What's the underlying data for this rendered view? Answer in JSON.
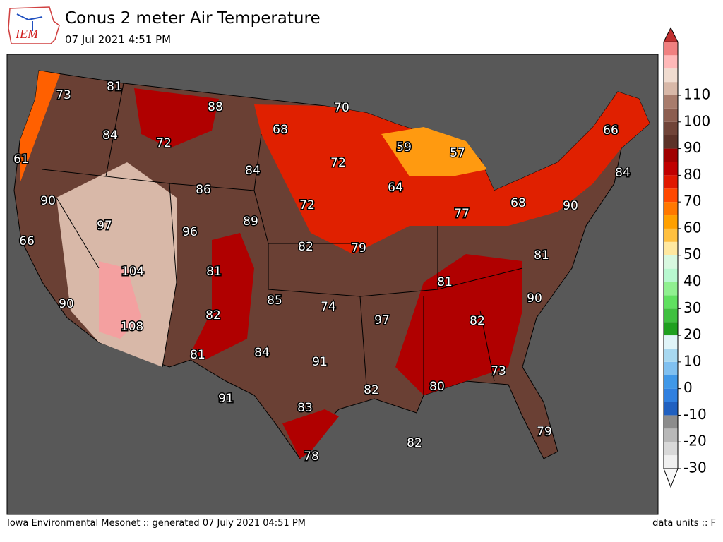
{
  "logo": "IEM",
  "header": {
    "title": "Conus 2 meter Air Temperature",
    "subtitle": "07 Jul 2021 4:51 PM"
  },
  "footer": {
    "left": "Iowa Environmental Mesonet :: generated 07 July 2021 04:51 PM",
    "right": "data units :: F"
  },
  "colorbar": {
    "ticks": [
      -30,
      -20,
      -10,
      0,
      10,
      20,
      30,
      40,
      50,
      60,
      70,
      80,
      90,
      100,
      110
    ],
    "colors": [
      "#f0f0f0",
      "#d8d8d8",
      "#b8b8b8",
      "#8c8c8c",
      "#2060c0",
      "#3080e0",
      "#4098e8",
      "#80c0f0",
      "#a8d8f0",
      "#e0f4f8",
      "#20a020",
      "#40c040",
      "#60e060",
      "#90f090",
      "#b8f8d0",
      "#d8f8e0",
      "#ffe8a0",
      "#ffc040",
      "#ffa000",
      "#ff7800",
      "#ff4800",
      "#e01800",
      "#c00000",
      "#a00000",
      "#5c3228",
      "#704438",
      "#8c5e50",
      "#a87c6c",
      "#d8b8a8",
      "#f0dcd0",
      "#ffb8b8",
      "#f08080"
    ],
    "extend_colors": [
      "#f8f8f8",
      "#c03030"
    ]
  },
  "map": {
    "labels": [
      73,
      81,
      88,
      84,
      72,
      61,
      86,
      84,
      70,
      68,
      72,
      59,
      57,
      64,
      66,
      84,
      90,
      97,
      96,
      89,
      72,
      82,
      79,
      77,
      68,
      90,
      81,
      66,
      104,
      81,
      81,
      90,
      85,
      74,
      97,
      82,
      90,
      108,
      82,
      81,
      84,
      91,
      73,
      80,
      82,
      91,
      83,
      79,
      82,
      78
    ]
  }
}
